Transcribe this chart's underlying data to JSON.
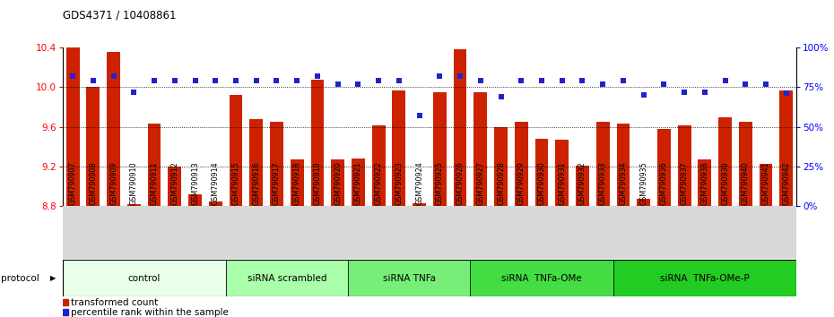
{
  "title": "GDS4371 / 10408861",
  "samples": [
    "GSM790907",
    "GSM790908",
    "GSM790909",
    "GSM790910",
    "GSM790911",
    "GSM790912",
    "GSM790913",
    "GSM790914",
    "GSM790915",
    "GSM790916",
    "GSM790917",
    "GSM790918",
    "GSM790919",
    "GSM790920",
    "GSM790921",
    "GSM790922",
    "GSM790923",
    "GSM790924",
    "GSM790925",
    "GSM790926",
    "GSM790927",
    "GSM790928",
    "GSM790929",
    "GSM790930",
    "GSM790931",
    "GSM790932",
    "GSM790933",
    "GSM790934",
    "GSM790935",
    "GSM790936",
    "GSM790937",
    "GSM790938",
    "GSM790939",
    "GSM790940",
    "GSM790941",
    "GSM790942"
  ],
  "bar_values": [
    10.4,
    10.0,
    10.36,
    8.82,
    9.63,
    9.2,
    8.92,
    8.85,
    9.92,
    9.68,
    9.65,
    9.27,
    10.08,
    9.27,
    9.28,
    9.61,
    9.97,
    8.83,
    9.95,
    10.38,
    9.95,
    9.6,
    9.65,
    9.48,
    9.47,
    9.21,
    9.65,
    9.63,
    8.87,
    9.58,
    9.61,
    9.27,
    9.7,
    9.65,
    9.23,
    9.97
  ],
  "percentile_values": [
    82,
    79,
    82,
    72,
    79,
    79,
    79,
    79,
    79,
    79,
    79,
    79,
    82,
    77,
    77,
    79,
    79,
    57,
    82,
    82,
    79,
    69,
    79,
    79,
    79,
    79,
    77,
    79,
    70,
    77,
    72,
    72,
    79,
    77,
    77,
    71
  ],
  "groups": [
    {
      "label": "control",
      "start": 0,
      "end": 8,
      "color": "#e8ffe8"
    },
    {
      "label": "siRNA scrambled",
      "start": 8,
      "end": 14,
      "color": "#aaffaa"
    },
    {
      "label": "siRNA TNFa",
      "start": 14,
      "end": 20,
      "color": "#77ee77"
    },
    {
      "label": "siRNA  TNFa-OMe",
      "start": 20,
      "end": 27,
      "color": "#44dd44"
    },
    {
      "label": "siRNA  TNFa-OMe-P",
      "start": 27,
      "end": 36,
      "color": "#22cc22"
    }
  ],
  "bar_color": "#cc2200",
  "dot_color": "#2222cc",
  "ylim_left": [
    8.8,
    10.4
  ],
  "ylim_right": [
    0,
    100
  ],
  "yticks_left": [
    8.8,
    9.2,
    9.6,
    10.0,
    10.4
  ],
  "yticks_right": [
    0,
    25,
    50,
    75,
    100
  ],
  "background_color": "#ffffff"
}
